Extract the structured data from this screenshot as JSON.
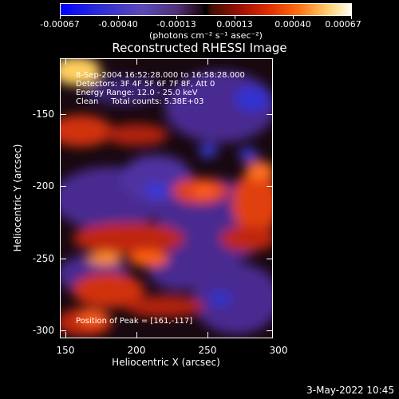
{
  "colorbar": {
    "tick_labels": [
      "-0.00067",
      "-0.00040",
      "-0.00013",
      "0.00013",
      "0.00040",
      "0.00067"
    ],
    "units": "(photons cm⁻² s⁻¹ asec⁻²)"
  },
  "title": "Reconstructed RHESSI Image",
  "info": {
    "time_range": "8-Sep-2004 16:52:28.000 to 16:58:28.000",
    "detectors": "Detectors: 3F 4F 5F 6F 7F 8F, Att 0",
    "energy": "Energy Range: 12.0 - 25.0 keV",
    "method": "Clean     Total counts: 5.38E+03"
  },
  "peak": "Position of Peak = [161,-117]",
  "axes": {
    "xlabel": "Heliocentric X (arcsec)",
    "ylabel": "Heliocentric Y (arcsec)",
    "x_ticks": [
      "150",
      "200",
      "250",
      "300"
    ],
    "y_ticks": [
      "-150",
      "-200",
      "-250",
      "-300"
    ]
  },
  "timestamp": "3-May-2022 10:45"
}
